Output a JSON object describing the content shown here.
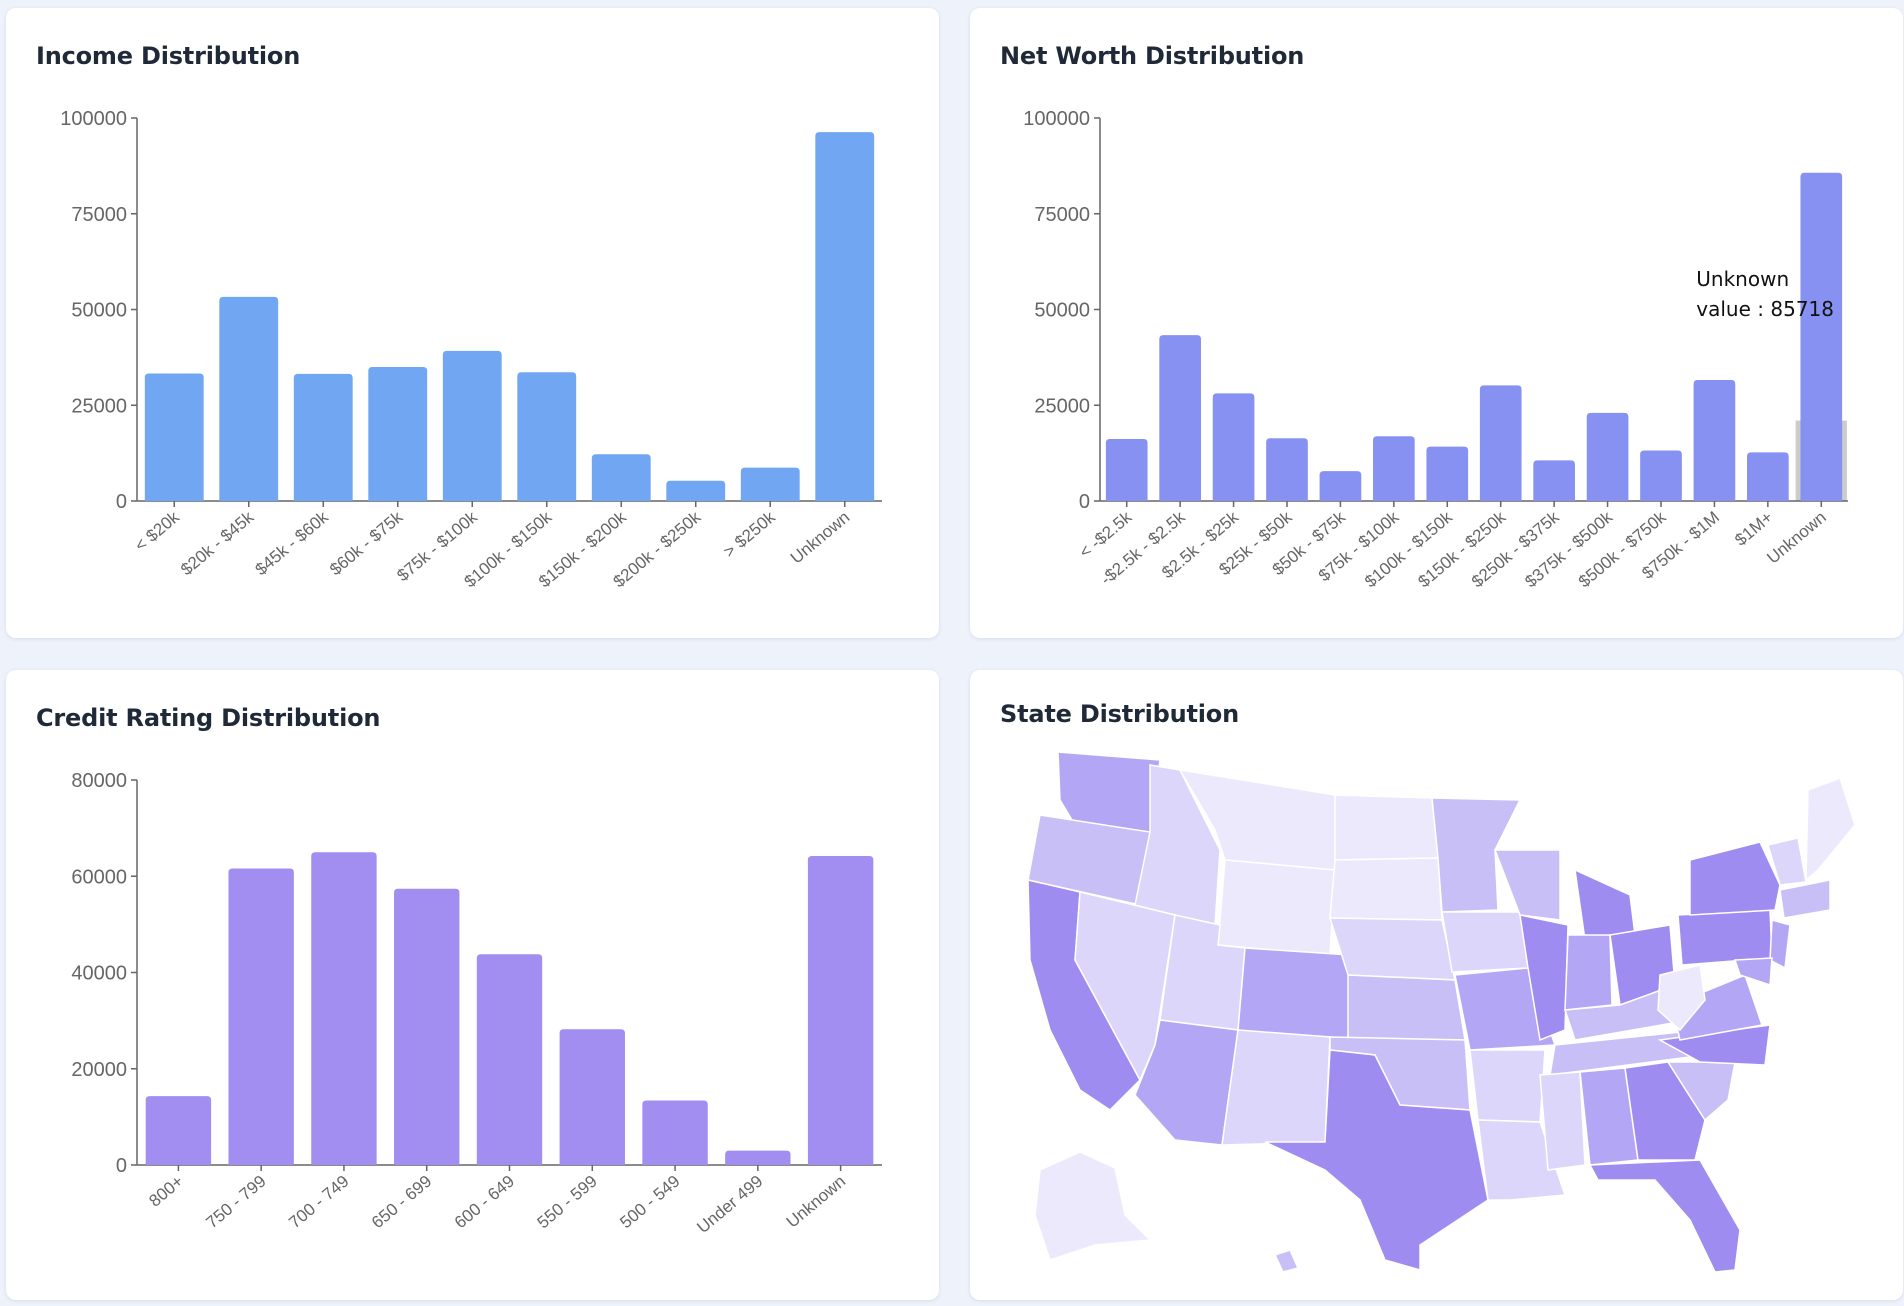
{
  "colors": {
    "income_bar": "#71a6f3",
    "networth_bar": "#8791f1",
    "credit_bar": "#a18ef0",
    "axis": "#666666",
    "hover_bg": "#cccccc",
    "map_shades": [
      "#ece9fc",
      "#dcd6fa",
      "#c8bff7",
      "#b3a7f5",
      "#9e8cf0"
    ]
  },
  "charts": {
    "income": {
      "title": "Income Distribution",
      "chart_data": {
        "type": "bar",
        "categories": [
          "< $20k",
          "$20k - $45k",
          "$45k - $60k",
          "$60k - $75k",
          "$75k - $100k",
          "$100k - $150k",
          "$150k - $200k",
          "$200k - $250k",
          "> $250k",
          "Unknown"
        ],
        "values": [
          33300,
          53300,
          33200,
          35000,
          39200,
          33600,
          12200,
          5300,
          8700,
          96300
        ],
        "yticks": [
          0,
          25000,
          50000,
          75000,
          100000
        ],
        "ylim": [
          0,
          100000
        ],
        "xlabel": "",
        "ylabel": "",
        "grid": false
      }
    },
    "networth": {
      "title": "Net Worth Distribution",
      "chart_data": {
        "type": "bar",
        "categories": [
          "< -$2.5k",
          "-$2.5k - $2.5k",
          "$2.5k - $25k",
          "$25k - $50k",
          "$50k - $75k",
          "$75k - $100k",
          "$100k - $150k",
          "$150k - $250k",
          "$250k - $375k",
          "$375k - $500k",
          "$500k - $750k",
          "$750k - $1M",
          "$1M+",
          "Unknown"
        ],
        "values": [
          16200,
          43300,
          28100,
          16400,
          7800,
          16900,
          14200,
          30200,
          10600,
          23000,
          13200,
          31600,
          12700,
          85718
        ],
        "yticks": [
          0,
          25000,
          50000,
          75000,
          100000
        ],
        "ylim": [
          0,
          100000
        ],
        "xlabel": "",
        "ylabel": "",
        "grid": false,
        "hover_index": 13
      },
      "tooltip": {
        "label": "Unknown",
        "value": "value : 85718"
      }
    },
    "credit": {
      "title": "Credit Rating Distribution",
      "chart_data": {
        "type": "bar",
        "categories": [
          "800+",
          "750 - 799",
          "700 - 749",
          "650 - 699",
          "600 - 649",
          "550 - 599",
          "500 - 549",
          "Under 499",
          "Unknown"
        ],
        "values": [
          14300,
          61600,
          65000,
          57400,
          43800,
          28200,
          13400,
          3000,
          64200
        ],
        "yticks": [
          0,
          20000,
          40000,
          60000,
          80000
        ],
        "ylim": [
          0,
          80000
        ],
        "xlabel": "",
        "ylabel": "",
        "grid": false
      }
    }
  },
  "state_map": {
    "title": "State Distribution",
    "legend": "none"
  }
}
